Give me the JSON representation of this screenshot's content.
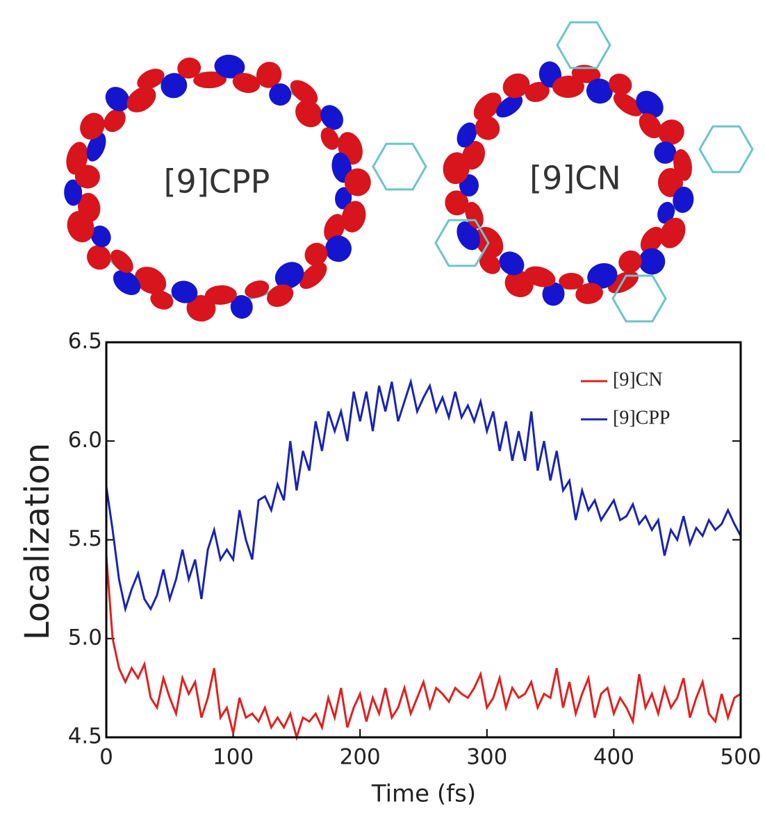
{
  "chart_data": {
    "type": "line",
    "annotations": [
      "[9]CPP",
      "[9]CN"
    ],
    "x_label": "Time (fs)",
    "y_label": "Localization",
    "x": [
      0,
      5,
      10,
      15,
      20,
      25,
      30,
      35,
      40,
      45,
      50,
      55,
      60,
      65,
      70,
      75,
      80,
      85,
      90,
      95,
      100,
      105,
      110,
      115,
      120,
      125,
      130,
      135,
      140,
      145,
      150,
      155,
      160,
      165,
      170,
      175,
      180,
      185,
      190,
      195,
      200,
      205,
      210,
      215,
      220,
      225,
      230,
      235,
      240,
      245,
      250,
      255,
      260,
      265,
      270,
      275,
      280,
      285,
      290,
      295,
      300,
      305,
      310,
      315,
      320,
      325,
      330,
      335,
      340,
      345,
      350,
      355,
      360,
      365,
      370,
      375,
      380,
      385,
      390,
      395,
      400,
      405,
      410,
      415,
      420,
      425,
      430,
      435,
      440,
      445,
      450,
      455,
      460,
      465,
      470,
      475,
      480,
      485,
      490,
      495,
      500
    ],
    "series": [
      {
        "name": "[9]CN",
        "color": "#e02020",
        "values": [
          5.42,
          5.0,
          4.85,
          4.78,
          4.85,
          4.8,
          4.87,
          4.7,
          4.65,
          4.8,
          4.7,
          4.62,
          4.8,
          4.72,
          4.78,
          4.6,
          4.7,
          4.85,
          4.6,
          4.65,
          4.52,
          4.7,
          4.6,
          4.62,
          4.58,
          4.65,
          4.55,
          4.6,
          4.55,
          4.62,
          4.5,
          4.6,
          4.58,
          4.62,
          4.55,
          4.7,
          4.6,
          4.75,
          4.55,
          4.65,
          4.72,
          4.58,
          4.7,
          4.62,
          4.75,
          4.6,
          4.65,
          4.75,
          4.62,
          4.7,
          4.78,
          4.65,
          4.75,
          4.72,
          4.68,
          4.75,
          4.72,
          4.7,
          4.75,
          4.82,
          4.65,
          4.7,
          4.8,
          4.65,
          4.75,
          4.7,
          4.72,
          4.78,
          4.65,
          4.72,
          4.7,
          4.85,
          4.65,
          4.78,
          4.62,
          4.72,
          4.8,
          4.6,
          4.72,
          4.75,
          4.62,
          4.7,
          4.65,
          4.58,
          4.82,
          4.65,
          4.72,
          4.62,
          4.75,
          4.65,
          4.7,
          4.8,
          4.6,
          4.7,
          4.78,
          4.62,
          4.58,
          4.72,
          4.6,
          4.7,
          4.72
        ]
      },
      {
        "name": "[9]CPP",
        "color": "#1a24b0",
        "values": [
          5.77,
          5.55,
          5.3,
          5.15,
          5.25,
          5.33,
          5.2,
          5.15,
          5.22,
          5.35,
          5.2,
          5.3,
          5.45,
          5.3,
          5.4,
          5.2,
          5.45,
          5.55,
          5.4,
          5.45,
          5.4,
          5.65,
          5.5,
          5.4,
          5.7,
          5.72,
          5.65,
          5.78,
          5.7,
          6.0,
          5.75,
          5.95,
          5.85,
          6.1,
          5.95,
          6.15,
          6.05,
          6.15,
          6.0,
          6.25,
          6.1,
          6.25,
          6.05,
          6.28,
          6.15,
          6.3,
          6.1,
          6.2,
          6.3,
          6.15,
          6.22,
          6.28,
          6.15,
          6.22,
          6.12,
          6.25,
          6.12,
          6.18,
          6.1,
          6.2,
          6.05,
          6.15,
          5.95,
          6.1,
          5.9,
          6.05,
          5.9,
          6.15,
          5.85,
          6.0,
          5.8,
          5.95,
          5.75,
          5.8,
          5.6,
          5.75,
          5.65,
          5.7,
          5.6,
          5.65,
          5.7,
          5.6,
          5.62,
          5.68,
          5.58,
          5.62,
          5.55,
          5.6,
          5.42,
          5.55,
          5.5,
          5.62,
          5.48,
          5.56,
          5.52,
          5.6,
          5.55,
          5.58,
          5.65,
          5.58,
          5.52
        ]
      }
    ],
    "xlim": [
      0,
      500
    ],
    "xticks": [
      0,
      100,
      200,
      300,
      400,
      500
    ],
    "ylim": [
      4.5,
      6.5
    ],
    "yticks": [
      {
        "value": 4.5,
        "label": "4.5"
      },
      {
        "value": 5,
        "label": "5.0"
      },
      5.5,
      {
        "value": 6,
        "label": "6.0"
      },
      6.5
    ],
    "legend": "upper right"
  }
}
